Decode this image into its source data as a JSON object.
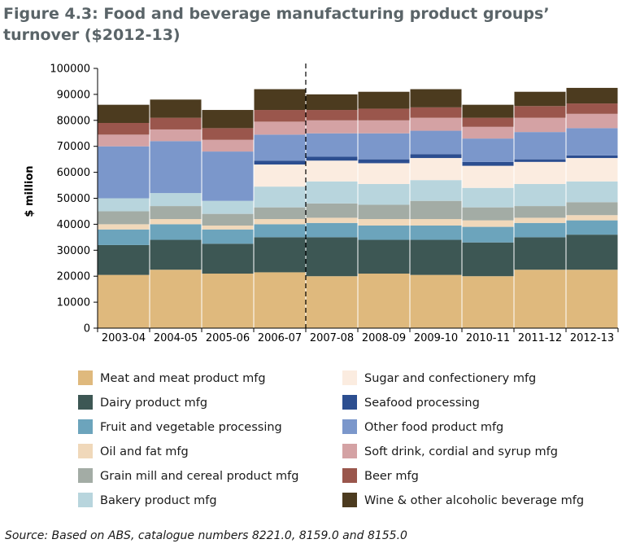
{
  "chart_data": {
    "type": "bar",
    "stacked": true,
    "title": "Figure 4.3: Food and beverage manufacturing product groups’ turnover ($2012-13)",
    "ylabel": "$ million",
    "xlabel": "",
    "ylim": [
      0,
      100000
    ],
    "yticks": [
      0,
      10000,
      20000,
      30000,
      40000,
      50000,
      60000,
      70000,
      80000,
      90000,
      100000
    ],
    "grid": false,
    "legend_position": "bottom",
    "divider_after_category": "2006-07",
    "categories": [
      "2003-04",
      "2004-05",
      "2005-06",
      "2006-07",
      "2007-08",
      "2008-09",
      "2009-10",
      "2010-11",
      "2011-12",
      "2012-13"
    ],
    "series": [
      {
        "name": "Meat and meat product mfg",
        "color": "#dfb97d",
        "values": [
          20500,
          22500,
          21000,
          21500,
          20000,
          21000,
          20500,
          20000,
          22500,
          22500
        ]
      },
      {
        "name": "Dairy product mfg",
        "color": "#3d5754",
        "values": [
          11500,
          11500,
          11500,
          13500,
          15000,
          13000,
          13500,
          13000,
          12500,
          13500
        ]
      },
      {
        "name": "Fruit and vegetable processing",
        "color": "#6ca4bc",
        "values": [
          6000,
          6000,
          5500,
          5000,
          5500,
          5500,
          5500,
          6000,
          5500,
          5500
        ]
      },
      {
        "name": "Oil and fat mfg",
        "color": "#f0d8ba",
        "values": [
          2000,
          2000,
          1500,
          2000,
          2000,
          2500,
          2500,
          2500,
          2000,
          2000
        ]
      },
      {
        "name": "Grain mill and cereal product mfg",
        "color": "#a3aca5",
        "values": [
          5000,
          5000,
          4500,
          4500,
          5500,
          5500,
          7000,
          5000,
          4500,
          5000
        ]
      },
      {
        "name": "Bakery product mfg",
        "color": "#b8d5dd",
        "values": [
          5000,
          5000,
          5000,
          8000,
          8500,
          8000,
          8000,
          7500,
          8500,
          8000
        ]
      },
      {
        "name": "Sugar and confectionery mfg",
        "color": "#fbece0",
        "values": [
          0,
          0,
          0,
          8500,
          8000,
          8000,
          8500,
          8500,
          8500,
          9000
        ]
      },
      {
        "name": "Seafood processing",
        "color": "#2c4e90",
        "values": [
          0,
          0,
          0,
          1500,
          1500,
          1500,
          1500,
          1500,
          1000,
          1000
        ]
      },
      {
        "name": "Other food product mfg",
        "color": "#7b97cb",
        "values": [
          20000,
          20000,
          19000,
          10000,
          9000,
          10000,
          9000,
          9000,
          10500,
          10500
        ]
      },
      {
        "name": "Soft drink, cordial and syrup mfg",
        "color": "#d4a2a4",
        "values": [
          4500,
          4500,
          4500,
          5000,
          5000,
          5000,
          5000,
          4500,
          5500,
          5500
        ]
      },
      {
        "name": "Beer mfg",
        "color": "#9a564c",
        "values": [
          4500,
          4500,
          4500,
          4500,
          4000,
          4500,
          4000,
          3500,
          4500,
          4000
        ]
      },
      {
        "name": "Wine & other alcoholic beverage mfg",
        "color": "#4c3b1f",
        "values": [
          7000,
          7000,
          7000,
          8000,
          6000,
          6500,
          7000,
          5000,
          5500,
          6000
        ]
      }
    ]
  },
  "source_text": "Source: Based on ABS, catalogue numbers 8221.0, 8159.0 and 8155.0"
}
